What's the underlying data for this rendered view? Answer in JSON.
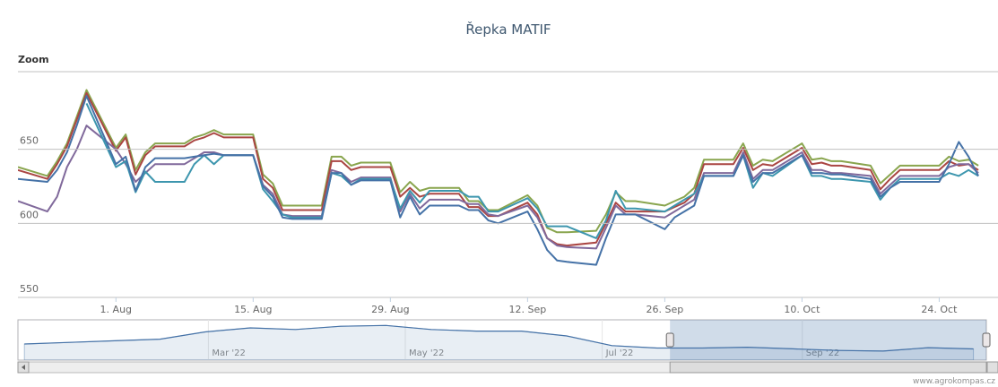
{
  "chart_data": {
    "type": "line",
    "title": "Řepka MATIF",
    "zoom_label": "Zoom",
    "credits": "www.agrokompas.cz",
    "x": [
      "2022-07-22",
      "2022-07-25",
      "2022-07-26",
      "2022-07-27",
      "2022-07-28",
      "2022-07-29",
      "2022-08-01",
      "2022-08-02",
      "2022-08-03",
      "2022-08-04",
      "2022-08-05",
      "2022-08-08",
      "2022-08-09",
      "2022-08-10",
      "2022-08-11",
      "2022-08-12",
      "2022-08-15",
      "2022-08-16",
      "2022-08-17",
      "2022-08-18",
      "2022-08-19",
      "2022-08-22",
      "2022-08-23",
      "2022-08-24",
      "2022-08-25",
      "2022-08-26",
      "2022-08-29",
      "2022-08-30",
      "2022-08-31",
      "2022-09-01",
      "2022-09-02",
      "2022-09-05",
      "2022-09-06",
      "2022-09-07",
      "2022-09-08",
      "2022-09-09",
      "2022-09-12",
      "2022-09-13",
      "2022-09-14",
      "2022-09-15",
      "2022-09-16",
      "2022-09-19",
      "2022-09-20",
      "2022-09-21",
      "2022-09-22",
      "2022-09-23",
      "2022-09-26",
      "2022-09-27",
      "2022-09-28",
      "2022-09-29",
      "2022-09-30",
      "2022-10-03",
      "2022-10-04",
      "2022-10-05",
      "2022-10-06",
      "2022-10-07",
      "2022-10-10",
      "2022-10-11",
      "2022-10-12",
      "2022-10-13",
      "2022-10-14",
      "2022-10-17",
      "2022-10-18",
      "2022-10-19",
      "2022-10-20",
      "2022-10-21",
      "2022-10-24",
      "2022-10-25",
      "2022-10-26",
      "2022-10-27",
      "2022-10-28"
    ],
    "series": [
      {
        "color": "#89a54e",
        "values": [
          638,
          632,
          642,
          654,
          672,
          690,
          651,
          660,
          636,
          648,
          654,
          654,
          658,
          660,
          663,
          660,
          660,
          633,
          627,
          612,
          612,
          612,
          645,
          645,
          639,
          641,
          641,
          621,
          628,
          622,
          624,
          624,
          615,
          615,
          609,
          609,
          619,
          612,
          597,
          594,
          594,
          595,
          606,
          621,
          615,
          615,
          612,
          615,
          618,
          624,
          643,
          643,
          654,
          639,
          643,
          642,
          654,
          643,
          644,
          642,
          642,
          639,
          627,
          633,
          639,
          639,
          639,
          645,
          642,
          643,
          639
        ]
      },
      {
        "color": "#aa4643",
        "values": [
          636,
          630,
          640,
          652,
          670,
          688,
          649,
          658,
          633,
          646,
          652,
          652,
          656,
          658,
          661,
          658,
          658,
          630,
          624,
          609,
          609,
          609,
          642,
          642,
          636,
          638,
          638,
          618,
          624,
          618,
          620,
          620,
          611,
          611,
          605,
          605,
          614,
          606,
          590,
          586,
          585,
          587,
          600,
          614,
          608,
          608,
          608,
          611,
          614,
          620,
          640,
          640,
          651,
          636,
          640,
          639,
          651,
          640,
          641,
          639,
          639,
          636,
          623,
          630,
          636,
          636,
          636,
          642,
          639,
          640,
          636
        ]
      },
      {
        "color": "#80699b",
        "values": [
          615,
          608,
          618,
          638,
          650,
          666,
          650,
          640,
          628,
          634,
          640,
          640,
          644,
          648,
          648,
          646,
          646,
          626,
          620,
          606,
          605,
          605,
          636,
          634,
          628,
          631,
          631,
          608,
          620,
          610,
          616,
          616,
          613,
          613,
          606,
          605,
          612,
          604,
          590,
          585,
          584,
          583,
          597,
          612,
          606,
          606,
          604,
          608,
          612,
          616,
          634,
          634,
          648,
          630,
          636,
          636,
          648,
          636,
          636,
          634,
          634,
          632,
          620,
          626,
          632,
          632,
          632,
          638,
          640,
          640,
          634
        ]
      },
      {
        "color": "#3d96ae",
        "values": [
          null,
          null,
          null,
          null,
          null,
          681,
          638,
          642,
          621,
          635,
          628,
          628,
          640,
          646,
          640,
          646,
          646,
          623,
          615,
          606,
          604,
          604,
          634,
          632,
          626,
          630,
          630,
          610,
          622,
          614,
          622,
          622,
          618,
          618,
          608,
          608,
          617,
          610,
          598,
          598,
          598,
          590,
          602,
          622,
          610,
          610,
          608,
          612,
          616,
          620,
          632,
          632,
          646,
          624,
          634,
          632,
          646,
          632,
          632,
          630,
          630,
          628,
          616,
          624,
          630,
          630,
          630,
          634,
          632,
          636,
          632
        ]
      },
      {
        "color": "#4572a7",
        "values": [
          630,
          628,
          636,
          648,
          666,
          686,
          640,
          645,
          622,
          638,
          644,
          644,
          645,
          646,
          647,
          646,
          646,
          625,
          618,
          604,
          603,
          603,
          634,
          634,
          626,
          629,
          629,
          604,
          618,
          606,
          612,
          612,
          609,
          609,
          602,
          600,
          608,
          596,
          582,
          575,
          574,
          572,
          590,
          606,
          606,
          606,
          596,
          604,
          608,
          612,
          632,
          632,
          646,
          628,
          634,
          634,
          646,
          634,
          634,
          633,
          633,
          630,
          618,
          624,
          628,
          628,
          628,
          640,
          655,
          645,
          632
        ]
      }
    ],
    "xlim": [
      "2022-07-22",
      "2022-10-30"
    ],
    "xticks": [
      {
        "value": "2022-08-01",
        "label": "1. Aug"
      },
      {
        "value": "2022-08-15",
        "label": "15. Aug"
      },
      {
        "value": "2022-08-29",
        "label": "29. Aug"
      },
      {
        "value": "2022-09-12",
        "label": "12. Sep"
      },
      {
        "value": "2022-09-26",
        "label": "26. Sep"
      },
      {
        "value": "2022-10-10",
        "label": "10. Oct"
      },
      {
        "value": "2022-10-24",
        "label": "24. Oct"
      }
    ],
    "ylim": [
      550,
      700
    ],
    "yticks": [
      550,
      600,
      650
    ],
    "grid": true,
    "navigator": {
      "color": "#4572a7",
      "x": [
        "2022-01-03",
        "2022-01-17",
        "2022-01-31",
        "2022-02-14",
        "2022-02-28",
        "2022-03-14",
        "2022-03-28",
        "2022-04-11",
        "2022-04-25",
        "2022-05-09",
        "2022-05-23",
        "2022-06-06",
        "2022-06-20",
        "2022-07-04",
        "2022-07-18",
        "2022-08-01",
        "2022-08-15",
        "2022-08-29",
        "2022-09-12",
        "2022-09-26",
        "2022-10-10",
        "2022-10-24"
      ],
      "values": [
        700,
        720,
        740,
        760,
        850,
        900,
        880,
        920,
        930,
        880,
        860,
        860,
        800,
        680,
        650,
        650,
        660,
        640,
        620,
        612,
        654,
        639
      ],
      "xlim": [
        "2022-01-01",
        "2022-10-28"
      ],
      "ylim": [
        500,
        1000
      ],
      "xticks": [
        {
          "value": "2022-03-01",
          "label": "Mar '22"
        },
        {
          "value": "2022-05-01",
          "label": "May '22"
        },
        {
          "value": "2022-07-01",
          "label": "Jul '22"
        },
        {
          "value": "2022-09-01",
          "label": "Sep '22"
        }
      ]
    }
  }
}
